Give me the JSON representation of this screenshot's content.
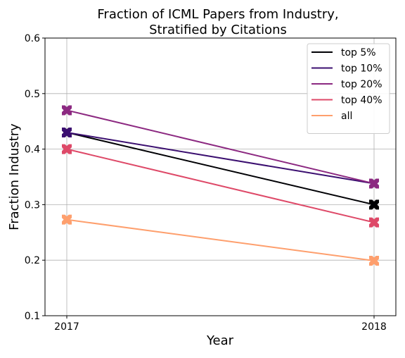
{
  "chart_data": {
    "type": "line",
    "title_line1": "Fraction of ICML Papers from Industry,",
    "title_line2": "Stratified by Citations",
    "xlabel": "Year",
    "ylabel": "Fraction Industry",
    "x": [
      2017,
      2018
    ],
    "x_tick_labels": [
      "2017",
      "2018"
    ],
    "ylim": [
      0.1,
      0.6
    ],
    "y_ticks": [
      0.1,
      0.2,
      0.3,
      0.4,
      0.5,
      0.6
    ],
    "y_tick_labels": [
      "0.1",
      "0.2",
      "0.3",
      "0.4",
      "0.5",
      "0.6"
    ],
    "grid": true,
    "legend_position": "top-right",
    "marker": "X",
    "series": [
      {
        "name": "top 5%",
        "values": [
          0.43,
          0.3
        ],
        "color": "#000004"
      },
      {
        "name": "top 10%",
        "values": [
          0.43,
          0.338
        ],
        "color": "#3b0f70"
      },
      {
        "name": "top 20%",
        "values": [
          0.47,
          0.338
        ],
        "color": "#8c2981"
      },
      {
        "name": "top 40%",
        "values": [
          0.4,
          0.268
        ],
        "color": "#de4968"
      },
      {
        "name": "all",
        "values": [
          0.273,
          0.199
        ],
        "color": "#fe9f6d"
      }
    ]
  }
}
